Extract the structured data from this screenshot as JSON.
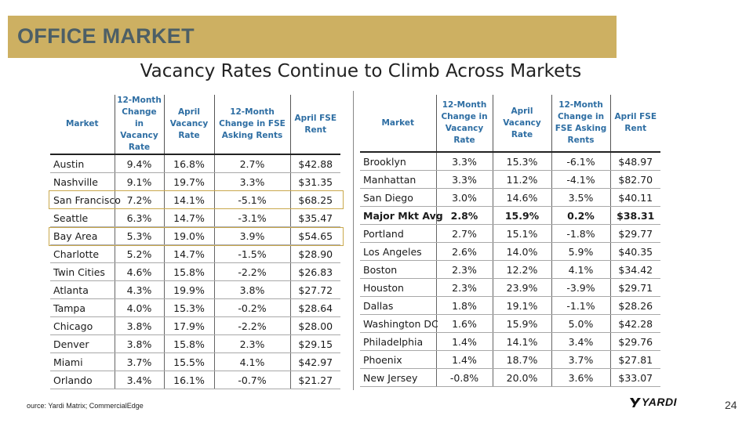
{
  "banner": {
    "title": "OFFICE MARKET"
  },
  "slide_title": "Vacancy Rates Continue to Climb Across Markets",
  "left_table": {
    "headers": [
      "Market",
      "12-Month Change in Vacancy Rate",
      "April Vacancy Rate",
      "12-Month Change in FSE Asking Rents",
      "April FSE Rent"
    ],
    "rows": [
      [
        "Austin",
        "9.4%",
        "16.8%",
        "2.7%",
        "$42.88"
      ],
      [
        "Nashville",
        "9.1%",
        "19.7%",
        "3.3%",
        "$31.35"
      ],
      [
        "San Francisco",
        "7.2%",
        "14.1%",
        "-5.1%",
        "$68.25"
      ],
      [
        "Seattle",
        "6.3%",
        "14.7%",
        "-3.1%",
        "$35.47"
      ],
      [
        "Bay Area",
        "5.3%",
        "19.0%",
        "3.9%",
        "$54.65"
      ],
      [
        "Charlotte",
        "5.2%",
        "14.7%",
        "-1.5%",
        "$28.90"
      ],
      [
        "Twin Cities",
        "4.6%",
        "15.8%",
        "-2.2%",
        "$26.83"
      ],
      [
        "Atlanta",
        "4.3%",
        "19.9%",
        "3.8%",
        "$27.72"
      ],
      [
        "Tampa",
        "4.0%",
        "15.3%",
        "-0.2%",
        "$28.64"
      ],
      [
        "Chicago",
        "3.8%",
        "17.9%",
        "-2.2%",
        "$28.00"
      ],
      [
        "Denver",
        "3.8%",
        "15.8%",
        "2.3%",
        "$29.15"
      ],
      [
        "Miami",
        "3.7%",
        "15.5%",
        "4.1%",
        "$42.97"
      ],
      [
        "Orlando",
        "3.4%",
        "16.1%",
        "-0.7%",
        "$21.27"
      ]
    ]
  },
  "right_table": {
    "headers": [
      "Market",
      "12-Month Change in Vacancy Rate",
      "April Vacancy Rate",
      "12-Month Change in FSE Asking Rents",
      "April FSE Rent"
    ],
    "rows": [
      [
        "Brooklyn",
        "3.3%",
        "15.3%",
        "-6.1%",
        "$48.97"
      ],
      [
        "Manhattan",
        "3.3%",
        "11.2%",
        "-4.1%",
        "$82.70"
      ],
      [
        "San Diego",
        "3.0%",
        "14.6%",
        "3.5%",
        "$40.11"
      ],
      [
        "Major Mkt Avg",
        "2.8%",
        "15.9%",
        "0.2%",
        "$38.31"
      ],
      [
        "Portland",
        "2.7%",
        "15.1%",
        "-1.8%",
        "$29.77"
      ],
      [
        "Los Angeles",
        "2.6%",
        "14.0%",
        "5.9%",
        "$40.35"
      ],
      [
        "Boston",
        "2.3%",
        "12.2%",
        "4.1%",
        "$34.42"
      ],
      [
        "Houston",
        "2.3%",
        "23.9%",
        "-3.9%",
        "$29.71"
      ],
      [
        "Dallas",
        "1.8%",
        "19.1%",
        "-1.1%",
        "$28.26"
      ],
      [
        "Washington DC",
        "1.6%",
        "15.9%",
        "5.0%",
        "$42.28"
      ],
      [
        "Philadelphia",
        "1.4%",
        "14.1%",
        "3.4%",
        "$29.76"
      ],
      [
        "Phoenix",
        "1.4%",
        "18.7%",
        "3.7%",
        "$27.81"
      ],
      [
        "New Jersey",
        "-0.8%",
        "20.0%",
        "3.6%",
        "$33.07"
      ]
    ]
  },
  "footer": {
    "source": "ource: Yardi Matrix; CommercialEdge",
    "logo_text": "YARDI",
    "page_number": "24"
  }
}
